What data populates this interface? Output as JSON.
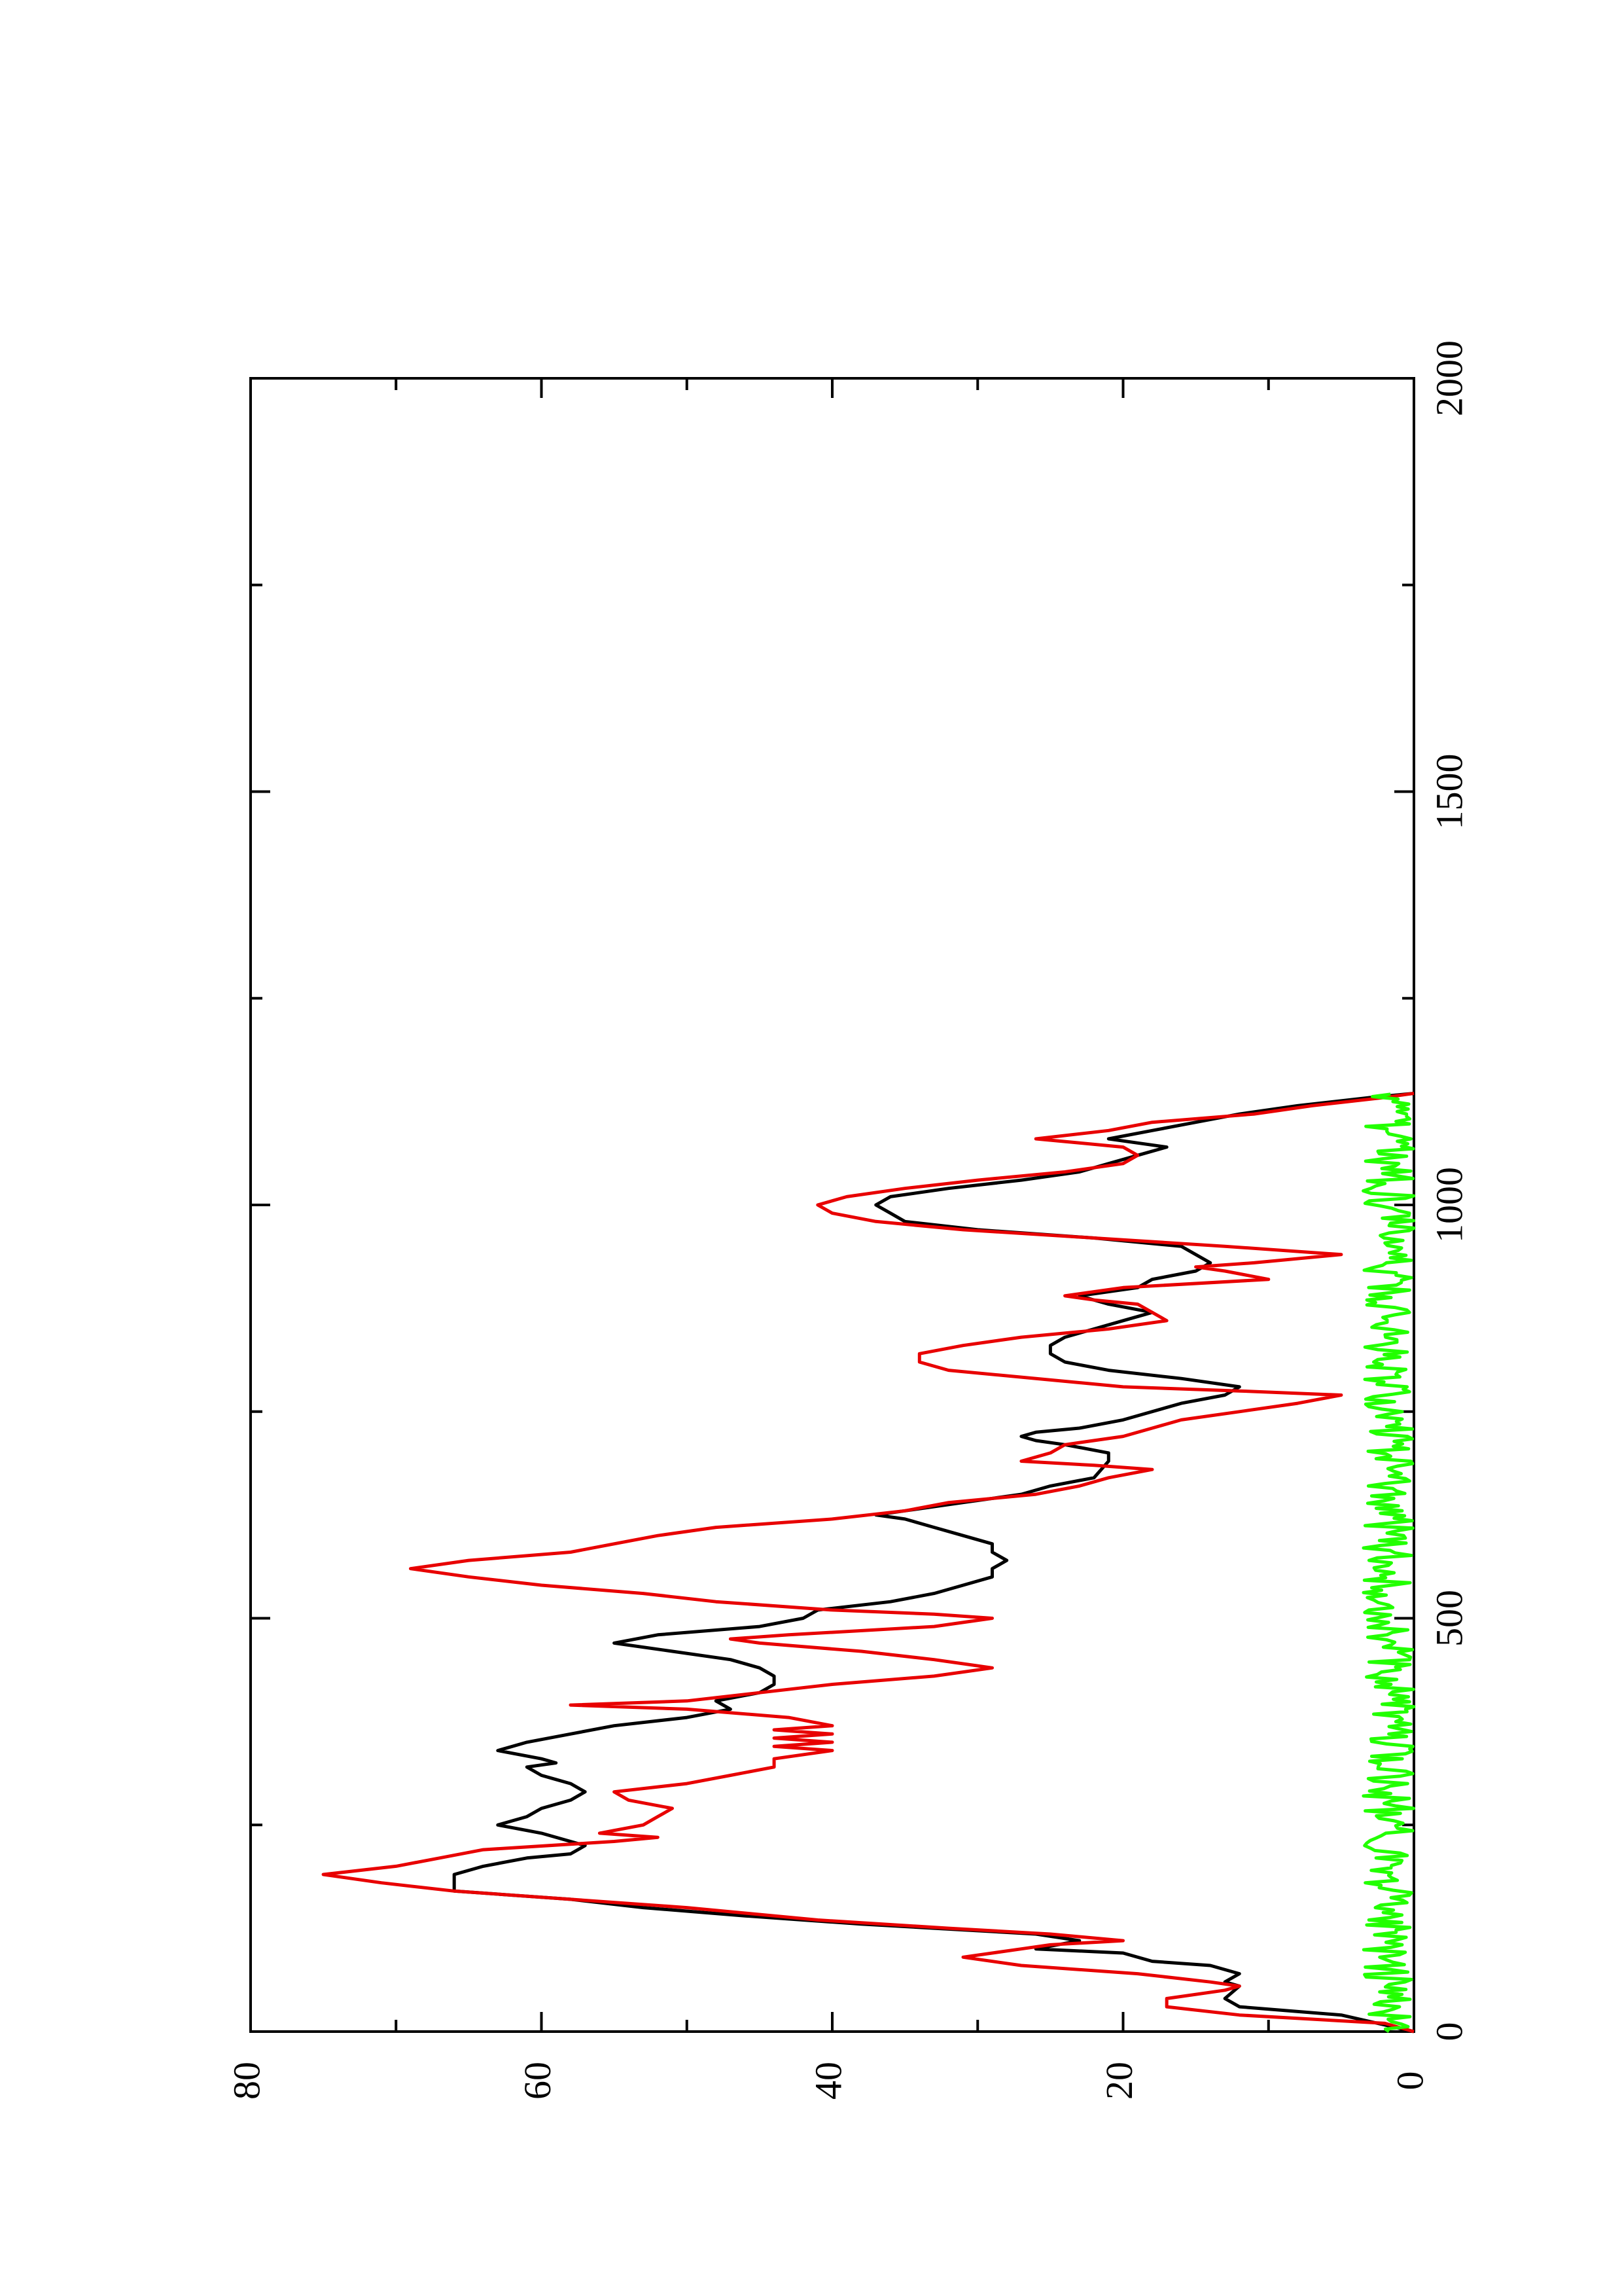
{
  "chart_data": {
    "type": "line",
    "orientation": "rotated 90 degrees counter-clockwise (x axis runs vertically, y axis horizontally)",
    "title": "",
    "xlabel": "",
    "ylabel": "",
    "xlim": [
      0,
      2000
    ],
    "ylim": [
      0,
      80
    ],
    "x_ticks": [
      0,
      500,
      1000,
      1500,
      2000
    ],
    "y_ticks": [
      0,
      20,
      40,
      60,
      80
    ],
    "x_tick_labels": [
      "0",
      "500",
      "1000",
      "1500",
      "2000"
    ],
    "y_tick_labels": [
      "0",
      "20",
      "40",
      "60",
      "80"
    ],
    "grid": false,
    "legend": "none",
    "series": [
      {
        "color": "#000000",
        "points": [
          [
            0,
            0
          ],
          [
            20,
            5
          ],
          [
            30,
            12
          ],
          [
            40,
            13
          ],
          [
            55,
            12
          ],
          [
            60,
            13
          ],
          [
            70,
            12
          ],
          [
            80,
            14
          ],
          [
            85,
            18
          ],
          [
            95,
            20
          ],
          [
            100,
            26
          ],
          [
            110,
            23
          ],
          [
            118,
            26
          ],
          [
            125,
            33
          ],
          [
            130,
            38
          ],
          [
            140,
            46
          ],
          [
            150,
            53
          ],
          [
            160,
            58
          ],
          [
            165,
            62
          ],
          [
            170,
            66
          ],
          [
            180,
            66
          ],
          [
            190,
            66
          ],
          [
            200,
            64
          ],
          [
            210,
            61
          ],
          [
            215,
            58
          ],
          [
            225,
            57
          ],
          [
            230,
            58
          ],
          [
            240,
            60
          ],
          [
            250,
            63
          ],
          [
            260,
            61
          ],
          [
            270,
            60
          ],
          [
            280,
            58
          ],
          [
            290,
            57
          ],
          [
            300,
            58
          ],
          [
            305,
            59
          ],
          [
            310,
            60
          ],
          [
            320,
            61
          ],
          [
            325,
            59
          ],
          [
            330,
            60
          ],
          [
            340,
            63
          ],
          [
            350,
            61
          ],
          [
            360,
            58
          ],
          [
            370,
            55
          ],
          [
            380,
            50
          ],
          [
            390,
            47
          ],
          [
            400,
            48
          ],
          [
            410,
            45
          ],
          [
            420,
            44
          ],
          [
            430,
            44
          ],
          [
            440,
            45
          ],
          [
            450,
            47
          ],
          [
            460,
            51
          ],
          [
            470,
            55
          ],
          [
            480,
            52
          ],
          [
            490,
            45
          ],
          [
            500,
            42
          ],
          [
            510,
            41
          ],
          [
            520,
            36
          ],
          [
            530,
            33
          ],
          [
            540,
            31
          ],
          [
            550,
            29
          ],
          [
            560,
            29
          ],
          [
            570,
            28
          ],
          [
            580,
            29
          ],
          [
            590,
            29
          ],
          [
            600,
            31
          ],
          [
            610,
            33
          ],
          [
            620,
            35
          ],
          [
            625,
            37
          ],
          [
            630,
            35
          ],
          [
            640,
            31
          ],
          [
            650,
            27
          ],
          [
            660,
            25
          ],
          [
            670,
            22
          ],
          [
            690,
            21
          ],
          [
            700,
            21
          ],
          [
            710,
            24
          ],
          [
            715,
            26
          ],
          [
            720,
            27
          ],
          [
            725,
            26
          ],
          [
            730,
            23
          ],
          [
            740,
            20
          ],
          [
            760,
            16
          ],
          [
            770,
            13
          ],
          [
            780,
            12
          ],
          [
            790,
            16
          ],
          [
            800,
            21
          ],
          [
            810,
            24
          ],
          [
            820,
            25
          ],
          [
            830,
            25
          ],
          [
            840,
            24
          ],
          [
            850,
            22
          ],
          [
            860,
            20
          ],
          [
            870,
            18
          ],
          [
            880,
            21
          ],
          [
            890,
            23
          ],
          [
            900,
            19
          ],
          [
            910,
            18
          ],
          [
            920,
            15
          ],
          [
            930,
            14
          ],
          [
            940,
            15
          ],
          [
            950,
            16
          ],
          [
            960,
            22
          ],
          [
            970,
            30
          ],
          [
            980,
            35
          ],
          [
            990,
            36
          ],
          [
            1000,
            37
          ],
          [
            1010,
            36
          ],
          [
            1020,
            32
          ],
          [
            1030,
            27
          ],
          [
            1040,
            23
          ],
          [
            1050,
            21
          ],
          [
            1060,
            19
          ],
          [
            1070,
            17
          ],
          [
            1075,
            19
          ],
          [
            1080,
            21
          ],
          [
            1090,
            18
          ],
          [
            1100,
            15
          ],
          [
            1110,
            12
          ],
          [
            1120,
            8
          ],
          [
            1130,
            3
          ],
          [
            1135,
            0
          ]
        ]
      },
      {
        "color": "#e80000",
        "points": [
          [
            0,
            0
          ],
          [
            10,
            2
          ],
          [
            20,
            12
          ],
          [
            30,
            17
          ],
          [
            40,
            17
          ],
          [
            50,
            13
          ],
          [
            55,
            12
          ],
          [
            60,
            14
          ],
          [
            70,
            19
          ],
          [
            80,
            27
          ],
          [
            90,
            31
          ],
          [
            100,
            27
          ],
          [
            105,
            25
          ],
          [
            110,
            20
          ],
          [
            118,
            25
          ],
          [
            125,
            32
          ],
          [
            135,
            41
          ],
          [
            150,
            50
          ],
          [
            160,
            58
          ],
          [
            170,
            66
          ],
          [
            180,
            71
          ],
          [
            190,
            75
          ],
          [
            200,
            70
          ],
          [
            210,
            67
          ],
          [
            220,
            64
          ],
          [
            230,
            55
          ],
          [
            235,
            52
          ],
          [
            240,
            56
          ],
          [
            250,
            53
          ],
          [
            260,
            52
          ],
          [
            270,
            51
          ],
          [
            280,
            54
          ],
          [
            290,
            55
          ],
          [
            300,
            50
          ],
          [
            310,
            47
          ],
          [
            320,
            44
          ],
          [
            330,
            44
          ],
          [
            340,
            40
          ],
          [
            345,
            44
          ],
          [
            350,
            40
          ],
          [
            355,
            44
          ],
          [
            360,
            40
          ],
          [
            365,
            44
          ],
          [
            370,
            40
          ],
          [
            380,
            43
          ],
          [
            390,
            50
          ],
          [
            395,
            58
          ],
          [
            400,
            50
          ],
          [
            410,
            45
          ],
          [
            420,
            40
          ],
          [
            430,
            33
          ],
          [
            440,
            29
          ],
          [
            450,
            33
          ],
          [
            460,
            38
          ],
          [
            470,
            45
          ],
          [
            475,
            47
          ],
          [
            480,
            43
          ],
          [
            490,
            33
          ],
          [
            500,
            29
          ],
          [
            505,
            33
          ],
          [
            510,
            40
          ],
          [
            520,
            48
          ],
          [
            530,
            53
          ],
          [
            540,
            60
          ],
          [
            550,
            65
          ],
          [
            560,
            69
          ],
          [
            570,
            65
          ],
          [
            580,
            58
          ],
          [
            590,
            55
          ],
          [
            600,
            52
          ],
          [
            610,
            48
          ],
          [
            620,
            40
          ],
          [
            630,
            35
          ],
          [
            640,
            32
          ],
          [
            650,
            26
          ],
          [
            660,
            23
          ],
          [
            670,
            21
          ],
          [
            680,
            18
          ],
          [
            685,
            22
          ],
          [
            690,
            27
          ],
          [
            700,
            25
          ],
          [
            710,
            24
          ],
          [
            720,
            20
          ],
          [
            730,
            18
          ],
          [
            740,
            16
          ],
          [
            750,
            12
          ],
          [
            760,
            8
          ],
          [
            770,
            5
          ],
          [
            775,
            12
          ],
          [
            780,
            20
          ],
          [
            790,
            26
          ],
          [
            800,
            32
          ],
          [
            810,
            34
          ],
          [
            820,
            34
          ],
          [
            830,
            31
          ],
          [
            840,
            27
          ],
          [
            850,
            21
          ],
          [
            860,
            17
          ],
          [
            870,
            18
          ],
          [
            880,
            19
          ],
          [
            885,
            22
          ],
          [
            890,
            24
          ],
          [
            900,
            20
          ],
          [
            910,
            10
          ],
          [
            920,
            13
          ],
          [
            925,
            15
          ],
          [
            930,
            11
          ],
          [
            940,
            5
          ],
          [
            950,
            13
          ],
          [
            960,
            22
          ],
          [
            970,
            31
          ],
          [
            980,
            37
          ],
          [
            990,
            40
          ],
          [
            1000,
            41
          ],
          [
            1010,
            39
          ],
          [
            1020,
            35
          ],
          [
            1030,
            30
          ],
          [
            1040,
            24
          ],
          [
            1050,
            20
          ],
          [
            1060,
            19
          ],
          [
            1070,
            20
          ],
          [
            1075,
            23
          ],
          [
            1080,
            26
          ],
          [
            1090,
            21
          ],
          [
            1100,
            18
          ],
          [
            1110,
            11
          ],
          [
            1120,
            7
          ],
          [
            1130,
            2
          ],
          [
            1135,
            0
          ]
        ]
      },
      {
        "color": "#22ff00",
        "y_mean": 1.2,
        "y_range": [
          0,
          3.5
        ],
        "x_range": [
          0,
          1135
        ]
      }
    ]
  }
}
